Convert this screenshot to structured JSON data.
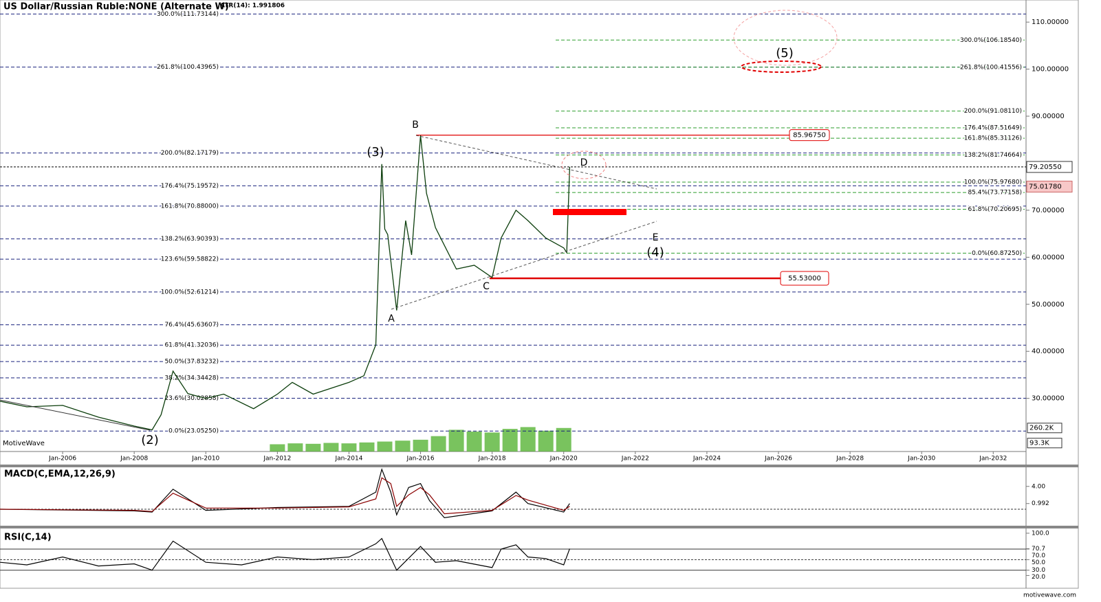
{
  "chart_data": [
    {
      "type": "line",
      "title": "US Dollar/Russian Ruble:NONE (Alternate W)",
      "subtitle": "ATR(14): 1.991806",
      "watermark": "MotiveWave",
      "footer": "motivewave.com",
      "x": [
        "2004-04",
        "2005-01",
        "2006-01",
        "2007-01",
        "2008-01",
        "2008-07",
        "2008-10",
        "2009-02",
        "2009-07",
        "2010-01",
        "2010-07",
        "2011-05",
        "2012-01",
        "2012-06",
        "2013-01",
        "2014-01",
        "2014-06",
        "2014-10",
        "2014-12",
        "2015-01",
        "2015-02",
        "2015-05",
        "2015-08",
        "2015-10",
        "2016-01",
        "2016-03",
        "2016-06",
        "2017-01",
        "2017-07",
        "2018-01",
        "2018-04",
        "2018-09",
        "2019-01",
        "2019-07",
        "2020-01",
        "2020-02",
        "2020-03"
      ],
      "series": [
        {
          "color": "#0b3d0b",
          "values": [
            29.4,
            28.2,
            28.5,
            26.0,
            24.1,
            23.3,
            26.5,
            35.8,
            31.0,
            30.0,
            30.9,
            27.8,
            30.9,
            33.4,
            30.9,
            33.4,
            34.8,
            41.4,
            79.8,
            66.0,
            64.8,
            48.7,
            67.8,
            60.5,
            85.9,
            73.6,
            66.3,
            57.5,
            58.3,
            55.7,
            64.1,
            70.0,
            67.8,
            64.1,
            62.0,
            61.0,
            79.2
          ]
        }
      ],
      "xlim": [
        "2004-04",
        "2032-12"
      ],
      "xticks": [
        {
          "value": "2006-01",
          "label": "Jan-2006"
        },
        {
          "value": "2008-01",
          "label": "Jan-2008"
        },
        {
          "value": "2010-01",
          "label": "Jan-2010"
        },
        {
          "value": "2012-01",
          "label": "Jan-2012"
        },
        {
          "value": "2014-01",
          "label": "Jan-2014"
        },
        {
          "value": "2016-01",
          "label": "Jan-2016"
        },
        {
          "value": "2018-01",
          "label": "Jan-2018"
        },
        {
          "value": "2020-01",
          "label": "Jan-2020"
        },
        {
          "value": "2022-01",
          "label": "Jan-2022"
        },
        {
          "value": "2024-01",
          "label": "Jan-2024"
        },
        {
          "value": "2026-01",
          "label": "Jan-2026"
        },
        {
          "value": "2028-01",
          "label": "Jan-2028"
        },
        {
          "value": "2030-01",
          "label": "Jan-2030"
        },
        {
          "value": "2032-01",
          "label": "Jan-2032"
        }
      ],
      "ylim": [
        18.7,
        114.7
      ],
      "yticks": [
        {
          "value": 110,
          "label": "110.00000"
        },
        {
          "value": 100,
          "label": "100.00000"
        },
        {
          "value": 90,
          "label": "90.00000"
        },
        {
          "value": 70,
          "label": "70.00000"
        },
        {
          "value": 60,
          "label": "60.00000"
        },
        {
          "value": 50,
          "label": "50.00000"
        },
        {
          "value": 40,
          "label": "40.00000"
        },
        {
          "value": 30,
          "label": "30.00000"
        }
      ],
      "fib_color": "#1a237e",
      "fib_levels": [
        {
          "value": 111.73144,
          "label": "300.0%(111.73144)"
        },
        {
          "value": 100.43965,
          "label": "261.8%(100.43965)"
        },
        {
          "value": 82.17179,
          "label": "200.0%(82.17179)"
        },
        {
          "value": 75.19572,
          "label": "176.4%(75.19572)"
        },
        {
          "value": 70.88,
          "label": "161.8%(70.88000)"
        },
        {
          "value": 63.90393,
          "label": "138.2%(63.90393)"
        },
        {
          "value": 59.58822,
          "label": "123.6%(59.58822)"
        },
        {
          "value": 52.61214,
          "label": "100.0%(52.61214)"
        },
        {
          "value": 45.63607,
          "label": "76.4%(45.63607)"
        },
        {
          "value": 41.32036,
          "label": "61.8%(41.32036)"
        },
        {
          "value": 37.83232,
          "label": "50.0%(37.83232)"
        },
        {
          "value": 34.34428,
          "label": "38.2%(34.34428)"
        },
        {
          "value": 30.02858,
          "label": "23.6%(30.02858)"
        },
        {
          "value": 23.0525,
          "label": "0.0%(23.05250)"
        }
      ],
      "projection_color": "#2e9e2e",
      "projection_levels": [
        {
          "value": 106.1854,
          "label": "300.0%(106.18540)"
        },
        {
          "value": 100.41556,
          "label": "261.8%(100.41556)"
        },
        {
          "value": 91.0811,
          "label": "200.0%(91.08110)"
        },
        {
          "value": 87.51649,
          "label": "176.4%(87.51649)"
        },
        {
          "value": 85.31126,
          "label": "161.8%(85.31126)"
        },
        {
          "value": 81.74664,
          "label": "138.2%(81.74664)"
        },
        {
          "value": 75.9768,
          "label": "100.0%(75.97680)"
        },
        {
          "value": 73.77158,
          "label": "85.4%(73.77158)"
        },
        {
          "value": 70.20695,
          "label": "61.8%(70.20695)"
        },
        {
          "value": 60.8725,
          "label": "0.0%(60.87250)"
        }
      ],
      "price_levels": [
        {
          "value": 85.9675,
          "label": "85.96750"
        },
        {
          "value": 55.53,
          "label": "55.53000"
        }
      ],
      "last_high": {
        "value": 79.2055,
        "label": "79.20550"
      },
      "last_close": {
        "value": 75.0178,
        "label": "75.01780"
      },
      "wave_labels": [
        "(2)",
        "(3)",
        "(4)",
        "(5)",
        "A",
        "B",
        "C",
        "D",
        "E"
      ],
      "volume": {
        "color": "#4caf28",
        "x": [
          "2012-01",
          "2012-07",
          "2013-01",
          "2013-07",
          "2014-01",
          "2014-07",
          "2015-01",
          "2015-07",
          "2016-01",
          "2016-07",
          "2017-01",
          "2017-07",
          "2018-01",
          "2018-07",
          "2019-01",
          "2019-07",
          "2020-01"
        ],
        "values": [
          80,
          90,
          85,
          95,
          90,
          100,
          110,
          120,
          130,
          170,
          240,
          220,
          210,
          250,
          270,
          230,
          260
        ],
        "ylim": [
          0,
          4990
        ],
        "yticks": [
          {
            "value": 260.2,
            "label": "260.2K"
          },
          {
            "value": 93.3,
            "label": "93.3K"
          }
        ]
      }
    },
    {
      "type": "line",
      "title": "MACD(C,EMA,12,26,9)",
      "x": [
        "2004-04",
        "2008-01",
        "2008-07",
        "2009-02",
        "2010-01",
        "2012-01",
        "2014-01",
        "2014-10",
        "2014-12",
        "2015-03",
        "2015-05",
        "2015-09",
        "2016-01",
        "2016-04",
        "2016-09",
        "2018-01",
        "2018-09",
        "2019-01",
        "2020-01",
        "2020-03"
      ],
      "series": [
        {
          "color": "#000000",
          "values": [
            0,
            -0.3,
            -0.5,
            3.5,
            -0.2,
            0.3,
            0.5,
            3.0,
            7.0,
            3.0,
            -1.0,
            3.8,
            4.5,
            1.5,
            -1.5,
            -0.3,
            3.0,
            1.0,
            -0.5,
            0.992
          ]
        },
        {
          "color": "#8b0000",
          "values": [
            0,
            -0.2,
            -0.4,
            2.8,
            0.2,
            0.2,
            0.4,
            1.8,
            5.5,
            4.5,
            0.5,
            2.5,
            3.8,
            2.5,
            -0.8,
            -0.2,
            2.4,
            1.6,
            -0.2,
            0.5
          ]
        }
      ],
      "ylim": [
        -2.9,
        7.35
      ],
      "yticks": [
        {
          "value": 4,
          "label": "4.00"
        },
        0.992
      ]
    },
    {
      "type": "line",
      "title": "RSI(C,14)",
      "x": [
        "2004-04",
        "2005-01",
        "2006-01",
        "2007-01",
        "2008-01",
        "2008-07",
        "2009-02",
        "2010-01",
        "2011-01",
        "2012-01",
        "2013-01",
        "2014-01",
        "2014-10",
        "2014-12",
        "2015-05",
        "2016-01",
        "2016-06",
        "2017-01",
        "2018-01",
        "2018-04",
        "2018-09",
        "2019-01",
        "2019-07",
        "2020-01",
        "2020-03"
      ],
      "series": [
        {
          "color": "#000000",
          "values": [
            45,
            40,
            55,
            38,
            42,
            30,
            85,
            45,
            40,
            55,
            50,
            55,
            80,
            90,
            30,
            75,
            45,
            48,
            35,
            70,
            78,
            55,
            52,
            40,
            70.7
          ]
        }
      ],
      "ylim": [
        1,
        109
      ],
      "yticks": [
        {
          "value": 100,
          "label": "100.0"
        },
        {
          "value": 70.7,
          "label": "70.7"
        },
        {
          "value": 70,
          "label": "70.0"
        },
        {
          "value": 50,
          "label": "50.0"
        },
        {
          "value": 30,
          "label": "30.0"
        },
        {
          "value": 20,
          "label": "20.0"
        }
      ],
      "levels": [
        70,
        50,
        30
      ]
    }
  ]
}
